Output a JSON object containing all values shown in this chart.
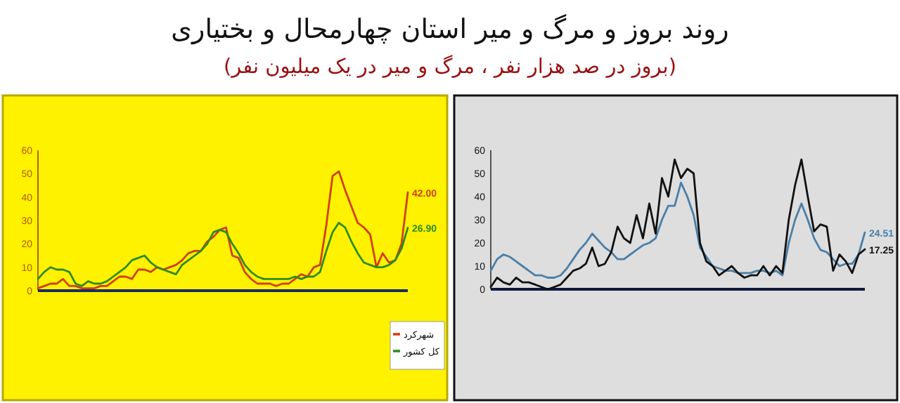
{
  "chart_data": [
    {
      "type": "line",
      "title": "روند بروز و مرگ و میر استان چهارمحال و بختیاری",
      "subtitle": "(بروز در صد هزار نفر ، مرگ و میر در یک میلیون نفر)",
      "categories": [
        null,
        null,
        null,
        null,
        null,
        null,
        null,
        null,
        null,
        null,
        null,
        null,
        null,
        null,
        null,
        null,
        null,
        null,
        null,
        null,
        null,
        null,
        null,
        null,
        null,
        null,
        null,
        null,
        null,
        null,
        null,
        null,
        null,
        null,
        null,
        null,
        null,
        null,
        null,
        null,
        null,
        null,
        null,
        null,
        null,
        null,
        null,
        null,
        null,
        null,
        null,
        null,
        null,
        null,
        null,
        null,
        null,
        null,
        null,
        null
      ],
      "ylim": [
        0,
        60
      ],
      "yticks": [
        0,
        10,
        20,
        30,
        40,
        50,
        60
      ],
      "legend": "right",
      "series": [
        {
          "name": "شهرکرد",
          "color": "#d04010",
          "values": [
            1,
            2,
            3,
            3,
            5,
            2,
            2,
            1,
            1,
            1,
            2,
            2,
            4,
            6,
            6,
            5,
            9,
            9,
            8,
            10,
            9,
            10,
            11,
            13,
            16,
            17,
            17,
            21,
            23,
            26,
            27,
            15,
            14,
            8,
            5,
            3,
            3,
            3,
            2,
            3,
            3,
            5,
            7,
            6,
            10,
            11,
            28,
            49,
            51,
            43,
            36,
            29,
            27,
            24,
            10,
            16,
            12,
            13,
            20,
            42.0
          ],
          "value_labels": [
            null,
            null,
            null,
            null,
            null,
            null,
            null,
            null,
            null,
            null,
            null,
            null,
            null,
            null,
            null,
            null,
            null,
            null,
            null,
            null,
            null,
            null,
            null,
            null,
            null,
            null,
            null,
            null,
            null,
            null,
            null,
            null,
            null,
            null,
            null,
            null,
            null,
            null,
            null,
            null,
            null,
            null,
            null,
            null,
            null,
            null,
            null,
            null,
            null,
            null,
            null,
            null,
            null,
            null,
            null,
            null,
            null,
            null,
            null,
            "42.00"
          ]
        },
        {
          "name": "کل کشور",
          "color": "#2e8b20",
          "values": [
            5,
            8,
            10,
            9,
            9,
            8,
            3,
            2,
            4,
            3,
            3,
            4,
            6,
            8,
            10,
            13,
            14,
            15,
            12,
            10,
            9,
            8,
            7,
            11,
            13,
            15,
            17,
            20,
            25,
            26,
            25,
            20,
            16,
            11,
            8,
            6,
            5,
            5,
            5,
            5,
            5,
            6,
            5,
            6,
            6,
            8,
            17,
            25,
            29,
            27,
            21,
            16,
            12,
            11,
            10,
            10,
            11,
            13,
            18,
            26.9
          ],
          "value_labels": [
            null,
            null,
            null,
            null,
            null,
            null,
            null,
            null,
            null,
            null,
            null,
            null,
            null,
            null,
            null,
            null,
            null,
            null,
            null,
            null,
            null,
            null,
            null,
            null,
            null,
            null,
            null,
            null,
            null,
            null,
            null,
            null,
            null,
            null,
            null,
            null,
            null,
            null,
            null,
            null,
            null,
            null,
            null,
            null,
            null,
            null,
            null,
            null,
            null,
            null,
            null,
            null,
            null,
            null,
            null,
            null,
            null,
            null,
            null,
            "26.90"
          ]
        }
      ]
    },
    {
      "type": "line",
      "categories": [
        null,
        null,
        null,
        null,
        null,
        null,
        null,
        null,
        null,
        null,
        null,
        null,
        null,
        null,
        null,
        null,
        null,
        null,
        null,
        null,
        null,
        null,
        null,
        null,
        null,
        null,
        null,
        null,
        null,
        null,
        null,
        null,
        null,
        null,
        null,
        null,
        null,
        null,
        null,
        null,
        null,
        null,
        null,
        null,
        null,
        null,
        null,
        null,
        null,
        null,
        null,
        null,
        null,
        null,
        null,
        null,
        null,
        null,
        null,
        null
      ],
      "ylim": [
        0,
        60
      ],
      "yticks": [
        0,
        10,
        20,
        30,
        40,
        50,
        60
      ],
      "series": [
        {
          "color": "#4a7fa8",
          "values": [
            8,
            13,
            15,
            14,
            12,
            10,
            8,
            6,
            6,
            5,
            5,
            6,
            9,
            13,
            17,
            20,
            24,
            21,
            18,
            16,
            13,
            13,
            15,
            17,
            19,
            20,
            22,
            30,
            36,
            36,
            46,
            40,
            32,
            18,
            14,
            10,
            9,
            8,
            8,
            7,
            7,
            7,
            8,
            8,
            7,
            8,
            6,
            20,
            30,
            37,
            30,
            22,
            17,
            16,
            13,
            10,
            11,
            11,
            15,
            24.51
          ],
          "value_labels": [
            null,
            null,
            null,
            null,
            null,
            null,
            null,
            null,
            null,
            null,
            null,
            null,
            null,
            null,
            null,
            null,
            null,
            null,
            null,
            null,
            null,
            null,
            null,
            null,
            null,
            null,
            null,
            null,
            null,
            null,
            null,
            null,
            null,
            null,
            null,
            null,
            null,
            null,
            null,
            null,
            null,
            null,
            null,
            null,
            null,
            null,
            null,
            null,
            null,
            null,
            null,
            null,
            null,
            null,
            null,
            null,
            null,
            null,
            null,
            "24.51"
          ]
        },
        {
          "color": "#111111",
          "values": [
            1,
            5,
            3,
            2,
            5,
            3,
            3,
            2,
            1,
            0,
            1,
            2,
            5,
            8,
            9,
            11,
            18,
            10,
            11,
            16,
            27,
            22,
            20,
            32,
            22,
            37,
            24,
            48,
            40,
            56,
            48,
            52,
            50,
            20,
            12,
            10,
            6,
            8,
            10,
            7,
            5,
            6,
            6,
            10,
            6,
            10,
            7,
            30,
            45,
            56,
            40,
            25,
            28,
            27,
            8,
            15,
            12,
            7,
            15,
            17.25
          ],
          "value_labels": [
            null,
            null,
            null,
            null,
            null,
            null,
            null,
            null,
            null,
            null,
            null,
            null,
            null,
            null,
            null,
            null,
            null,
            null,
            null,
            null,
            null,
            null,
            null,
            null,
            null,
            null,
            null,
            null,
            null,
            null,
            null,
            null,
            null,
            null,
            null,
            null,
            null,
            null,
            null,
            null,
            null,
            null,
            null,
            null,
            null,
            null,
            null,
            null,
            null,
            null,
            null,
            null,
            null,
            null,
            null,
            null,
            null,
            null,
            null,
            "17.25"
          ]
        }
      ]
    }
  ]
}
